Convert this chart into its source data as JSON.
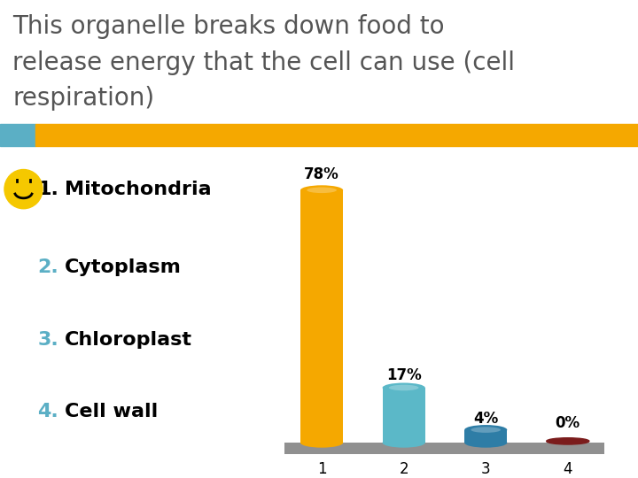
{
  "title_line1": "This organelle breaks down food to",
  "title_line2": "release energy that the cell can use (cell",
  "title_line3": "respiration)",
  "title_color": "#555555",
  "title_bg_color": "#F5A800",
  "title_left_color": "#5BAFC5",
  "categories": [
    "1",
    "2",
    "3",
    "4"
  ],
  "values": [
    78,
    17,
    4,
    0
  ],
  "bar_colors": [
    "#F5A800",
    "#5BB8C8",
    "#2E7DA6",
    "#7B1C1C"
  ],
  "bar_labels": [
    "78%",
    "17%",
    "4%",
    "0%"
  ],
  "options": [
    "Mitochondria",
    "Cytoplasm",
    "Chloroplast",
    "Cell wall"
  ],
  "option_numbers": [
    "1.",
    "2.",
    "3.",
    "4."
  ],
  "option_text_colors": [
    "#000000",
    "#000000",
    "#000000",
    "#000000"
  ],
  "number_colors": [
    "#000000",
    "#5BAFC5",
    "#5BAFC5",
    "#5BAFC5"
  ],
  "bg_color": "#FFFFFF",
  "floor_color": "#909090",
  "smiley_color": "#F5C800"
}
